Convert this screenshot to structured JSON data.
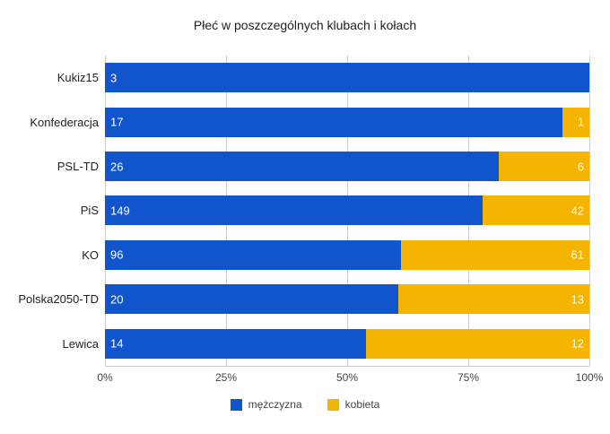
{
  "title": "Płeć w poszczególnych klubach i kołach",
  "chart_data": {
    "type": "bar",
    "orientation": "horizontal",
    "stacked": "percent",
    "title": "Płeć w poszczególnych klubach i kołach",
    "categories": [
      "Kukiz15",
      "Konfederacja",
      "PSL-TD",
      "PiS",
      "KO",
      "Polska2050-TD",
      "Lewica"
    ],
    "series": [
      {
        "name": "mężczyzna",
        "color": "#1155CC",
        "values": [
          3,
          17,
          26,
          149,
          96,
          20,
          14
        ]
      },
      {
        "name": "kobieta",
        "color": "#F4B400",
        "values": [
          0,
          1,
          6,
          42,
          61,
          13,
          12
        ]
      }
    ],
    "x_ticks": [
      "0%",
      "25%",
      "50%",
      "75%",
      "100%"
    ],
    "xlim": [
      0,
      100
    ],
    "grid": true,
    "legend_position": "bottom",
    "gridline_color": "#cccccc"
  }
}
